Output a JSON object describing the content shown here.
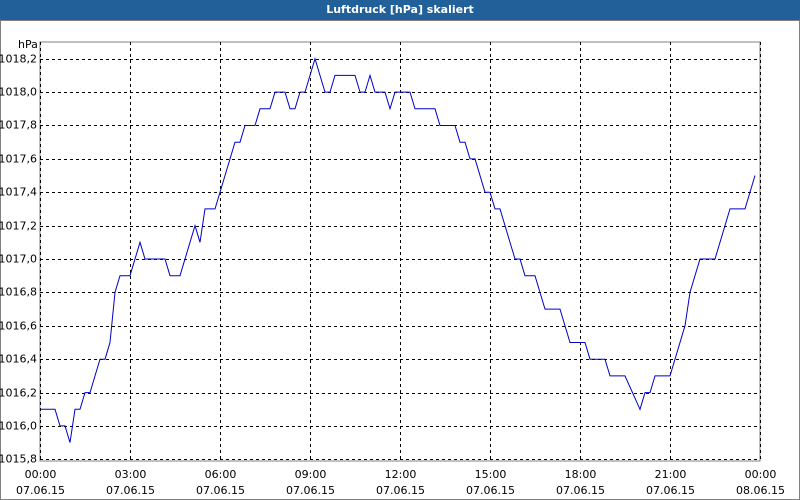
{
  "chart_data": {
    "type": "line",
    "title": "Luftdruck [hPa] skaliert",
    "y_unit": "hPa",
    "color": "#0000c8",
    "grid": true,
    "xlim": [
      "07.06.15 00:00",
      "08.06.15 00:00"
    ],
    "ylim": [
      1015.79,
      1018.3
    ],
    "xticks": [
      {
        "value": "07.06.15 00:00",
        "label": [
          "00:00",
          "07.06.15"
        ]
      },
      {
        "value": "07.06.15 03:00",
        "label": [
          "03:00",
          "07.06.15"
        ]
      },
      {
        "value": "07.06.15 06:00",
        "label": [
          "06:00",
          "07.06.15"
        ]
      },
      {
        "value": "07.06.15 09:00",
        "label": [
          "09:00",
          "07.06.15"
        ]
      },
      {
        "value": "07.06.15 12:00",
        "label": [
          "12:00",
          "07.06.15"
        ]
      },
      {
        "value": "07.06.15 15:00",
        "label": [
          "15:00",
          "07.06.15"
        ]
      },
      {
        "value": "07.06.15 18:00",
        "label": [
          "18:00",
          "07.06.15"
        ]
      },
      {
        "value": "07.06.15 21:00",
        "label": [
          "21:00",
          "07.06.15"
        ]
      },
      {
        "value": "08.06.15 00:00",
        "label": [
          "00:00",
          "08.06.15"
        ]
      }
    ],
    "yticks": [
      {
        "value": 1015.8,
        "label": "1015,8"
      },
      {
        "value": 1016.0,
        "label": "1016,0"
      },
      {
        "value": 1016.2,
        "label": "1016,2"
      },
      {
        "value": 1016.4,
        "label": "1016,4"
      },
      {
        "value": 1016.6,
        "label": "1016,6"
      },
      {
        "value": 1016.8,
        "label": "1016,8"
      },
      {
        "value": 1017.0,
        "label": "1017,0"
      },
      {
        "value": 1017.2,
        "label": "1017,2"
      },
      {
        "value": 1017.4,
        "label": "1017,4"
      },
      {
        "value": 1017.6,
        "label": "1017,6"
      },
      {
        "value": 1017.8,
        "label": "1017,8"
      },
      {
        "value": 1018.0,
        "label": "1018,0"
      },
      {
        "value": 1018.2,
        "label": "1018,2"
      }
    ],
    "x": [
      "07.06.15 00:00",
      "07.06.15 00:30",
      "07.06.15 00:40",
      "07.06.15 00:50",
      "07.06.15 01:00",
      "07.06.15 01:10",
      "07.06.15 01:20",
      "07.06.15 01:30",
      "07.06.15 01:40",
      "07.06.15 02:00",
      "07.06.15 02:10",
      "07.06.15 02:20",
      "07.06.15 02:30",
      "07.06.15 02:40",
      "07.06.15 03:00",
      "07.06.15 03:20",
      "07.06.15 03:30",
      "07.06.15 04:10",
      "07.06.15 04:20",
      "07.06.15 04:40",
      "07.06.15 05:10",
      "07.06.15 05:20",
      "07.06.15 05:30",
      "07.06.15 05:50",
      "07.06.15 06:30",
      "07.06.15 06:40",
      "07.06.15 06:50",
      "07.06.15 07:10",
      "07.06.15 07:20",
      "07.06.15 07:40",
      "07.06.15 07:50",
      "07.06.15 08:10",
      "07.06.15 08:20",
      "07.06.15 08:30",
      "07.06.15 08:40",
      "07.06.15 08:50",
      "07.06.15 09:10",
      "07.06.15 09:30",
      "07.06.15 09:40",
      "07.06.15 09:50",
      "07.06.15 10:30",
      "07.06.15 10:40",
      "07.06.15 10:50",
      "07.06.15 11:00",
      "07.06.15 11:10",
      "07.06.15 11:30",
      "07.06.15 11:40",
      "07.06.15 11:50",
      "07.06.15 12:20",
      "07.06.15 12:30",
      "07.06.15 13:10",
      "07.06.15 13:20",
      "07.06.15 13:50",
      "07.06.15 14:00",
      "07.06.15 14:10",
      "07.06.15 14:20",
      "07.06.15 14:30",
      "07.06.15 14:50",
      "07.06.15 15:00",
      "07.06.15 15:10",
      "07.06.15 15:20",
      "07.06.15 15:50",
      "07.06.15 16:00",
      "07.06.15 16:10",
      "07.06.15 16:30",
      "07.06.15 16:50",
      "07.06.15 17:20",
      "07.06.15 17:40",
      "07.06.15 18:10",
      "07.06.15 18:20",
      "07.06.15 18:50",
      "07.06.15 19:00",
      "07.06.15 19:30",
      "07.06.15 20:00",
      "07.06.15 20:10",
      "07.06.15 20:20",
      "07.06.15 20:30",
      "07.06.15 21:00",
      "07.06.15 21:30",
      "07.06.15 21:40",
      "07.06.15 22:00",
      "07.06.15 22:30",
      "07.06.15 23:00",
      "07.06.15 23:30",
      "07.06.15 23:50"
    ],
    "values": [
      1016.1,
      1016.1,
      1016.0,
      1016.0,
      1015.9,
      1016.1,
      1016.1,
      1016.2,
      1016.2,
      1016.4,
      1016.4,
      1016.5,
      1016.8,
      1016.9,
      1016.9,
      1017.1,
      1017.0,
      1017.0,
      1016.9,
      1016.9,
      1017.2,
      1017.1,
      1017.3,
      1017.3,
      1017.7,
      1017.7,
      1017.8,
      1017.8,
      1017.9,
      1017.9,
      1018.0,
      1018.0,
      1017.9,
      1017.9,
      1018.0,
      1018.0,
      1018.2,
      1018.0,
      1018.0,
      1018.1,
      1018.1,
      1018.0,
      1018.0,
      1018.1,
      1018.0,
      1018.0,
      1017.9,
      1018.0,
      1018.0,
      1017.9,
      1017.9,
      1017.8,
      1017.8,
      1017.7,
      1017.7,
      1017.6,
      1017.6,
      1017.4,
      1017.4,
      1017.3,
      1017.3,
      1017.0,
      1017.0,
      1016.9,
      1016.9,
      1016.7,
      1016.7,
      1016.5,
      1016.5,
      1016.4,
      1016.4,
      1016.3,
      1016.3,
      1016.1,
      1016.2,
      1016.2,
      1016.3,
      1016.3,
      1016.6,
      1016.8,
      1017.0,
      1017.0,
      1017.3,
      1017.3,
      1017.5
    ]
  }
}
